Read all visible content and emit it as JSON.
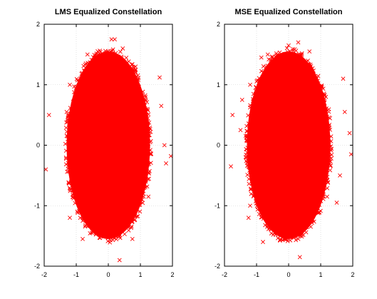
{
  "chart_data": [
    {
      "type": "scatter",
      "title": "LMS Equalized Constellation",
      "xlabel": "",
      "ylabel": "",
      "xlim": [
        -2,
        2
      ],
      "ylim": [
        -2,
        2
      ],
      "xticks": [
        "-2",
        "-1",
        "0",
        "1",
        "2"
      ],
      "yticks": [
        "2",
        "1",
        "0",
        "-1",
        "-2"
      ],
      "grid": true,
      "marker": "x",
      "color": "#ff0000",
      "core": {
        "center": [
          0.0,
          0.0
        ],
        "radius_x": 1.3,
        "radius_y": 1.55
      },
      "outliers": [
        [
          -1.95,
          -0.4
        ],
        [
          -1.85,
          0.5
        ],
        [
          -1.3,
          0.55
        ],
        [
          -1.2,
          1.0
        ],
        [
          -0.65,
          1.5
        ],
        [
          -0.7,
          1.35
        ],
        [
          -0.35,
          1.45
        ],
        [
          0.1,
          1.75
        ],
        [
          0.2,
          1.75
        ],
        [
          0.45,
          1.6
        ],
        [
          0.85,
          1.3
        ],
        [
          1.6,
          1.12
        ],
        [
          1.65,
          0.65
        ],
        [
          1.75,
          0.0
        ],
        [
          1.95,
          -0.18
        ],
        [
          1.8,
          -0.3
        ],
        [
          1.25,
          -0.85
        ],
        [
          -1.2,
          -1.2
        ],
        [
          -0.8,
          -1.55
        ],
        [
          0.35,
          -1.9
        ],
        [
          0.75,
          -1.55
        ],
        [
          0.3,
          -1.5
        ],
        [
          -0.3,
          -1.45
        ]
      ]
    },
    {
      "type": "scatter",
      "title": "MSE Equalized Constellation",
      "xlabel": "",
      "ylabel": "",
      "xlim": [
        -2,
        2
      ],
      "ylim": [
        -2,
        2
      ],
      "xticks": [
        "-2",
        "-1",
        "0",
        "1",
        "2"
      ],
      "yticks": [
        "2",
        "1",
        "0",
        "-1",
        "-2"
      ],
      "grid": true,
      "marker": "x",
      "color": "#ff0000",
      "core": {
        "center": [
          0.0,
          0.0
        ],
        "radius_x": 1.3,
        "radius_y": 1.55
      },
      "outliers": [
        [
          -1.8,
          -0.35
        ],
        [
          -1.75,
          0.5
        ],
        [
          -1.5,
          0.25
        ],
        [
          -1.45,
          0.75
        ],
        [
          -1.2,
          1.0
        ],
        [
          -0.85,
          1.45
        ],
        [
          -0.65,
          1.5
        ],
        [
          0.0,
          1.65
        ],
        [
          0.3,
          1.7
        ],
        [
          0.65,
          1.55
        ],
        [
          1.7,
          1.1
        ],
        [
          1.75,
          0.55
        ],
        [
          1.9,
          0.2
        ],
        [
          1.95,
          -0.15
        ],
        [
          1.6,
          -0.5
        ],
        [
          1.5,
          -0.95
        ],
        [
          1.2,
          -0.85
        ],
        [
          -1.2,
          -1.0
        ],
        [
          -1.25,
          -1.2
        ],
        [
          -0.8,
          -1.6
        ],
        [
          0.35,
          -1.85
        ],
        [
          0.3,
          -1.55
        ]
      ]
    }
  ]
}
